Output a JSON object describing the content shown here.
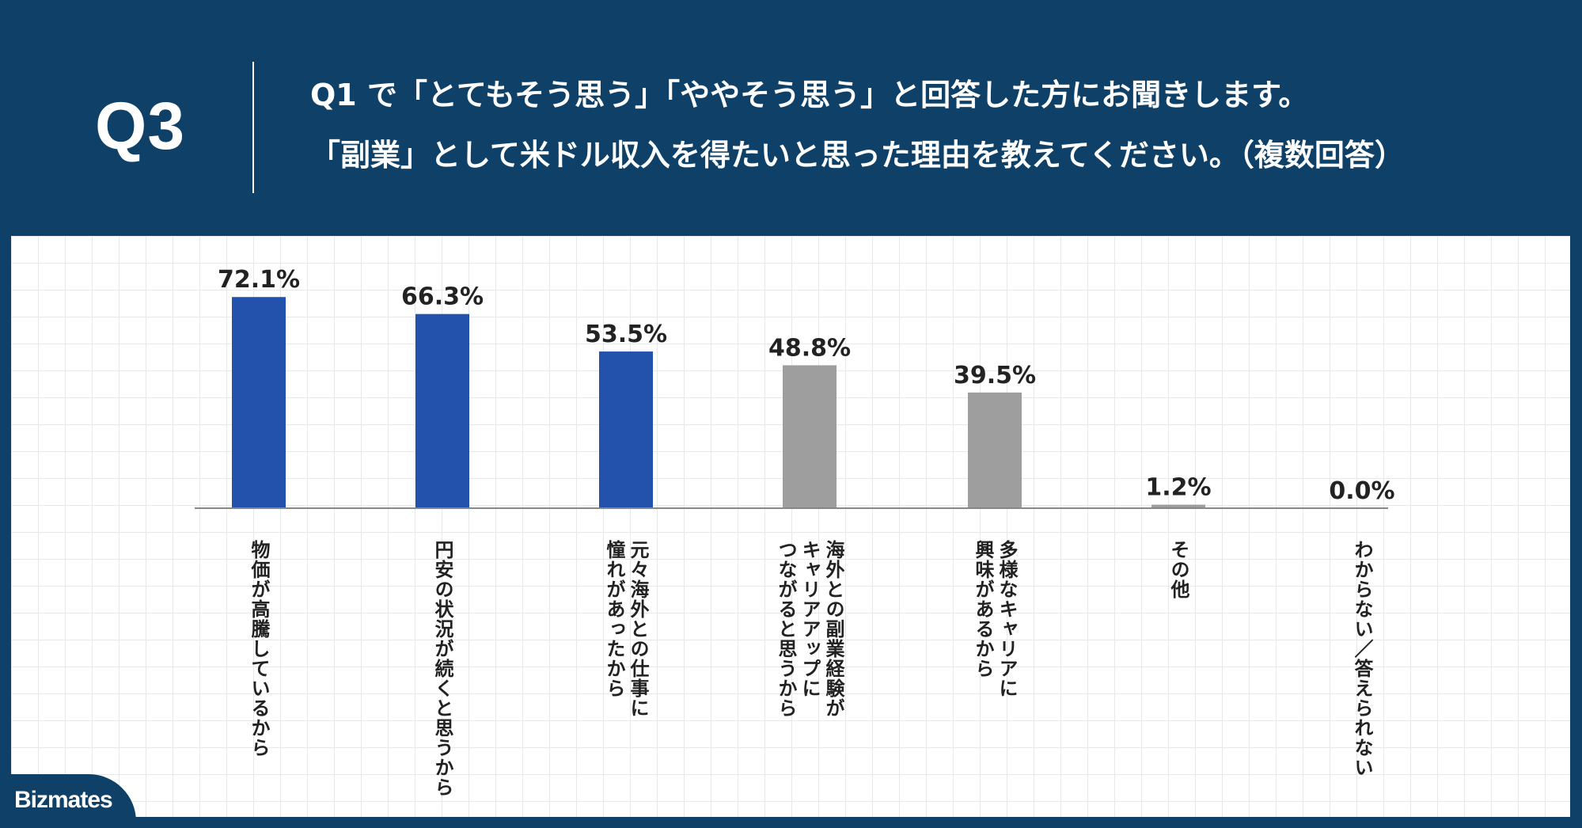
{
  "header": {
    "question_number": "Q3",
    "question_line1": "Q1 で「とてもそう思う」「ややそう思う」と回答した方にお聞きします。",
    "question_line2": "「副業」として米ドル収入を得たいと思った理由を教えてください。（複数回答）"
  },
  "brand": {
    "logo_text": "Bizmates"
  },
  "colors": {
    "background": "#0f4168",
    "highlight_bar": "#2352ad",
    "normal_bar": "#9e9e9e",
    "baseline": "#888888"
  },
  "chart_data": {
    "type": "bar",
    "title": "",
    "xlabel": "",
    "ylabel": "",
    "unit": "%",
    "ylim": [
      0,
      80
    ],
    "grid": true,
    "categories": [
      "物価が高騰しているから",
      "円安の状況が続くと思うから",
      "元々海外との仕事に\n憧れがあったから",
      "海外との副業経験が\nキャリアアップに\nつながると思うから",
      "多様なキャリアに\n興味があるから",
      "その他",
      "わからない／答えられない"
    ],
    "values": [
      72.1,
      66.3,
      53.5,
      48.8,
      39.5,
      1.2,
      0.0
    ],
    "value_labels": [
      "72.1%",
      "66.3%",
      "53.5%",
      "48.8%",
      "39.5%",
      "1.2%",
      "0.0%"
    ],
    "highlighted": [
      true,
      true,
      true,
      false,
      false,
      false,
      false
    ]
  }
}
